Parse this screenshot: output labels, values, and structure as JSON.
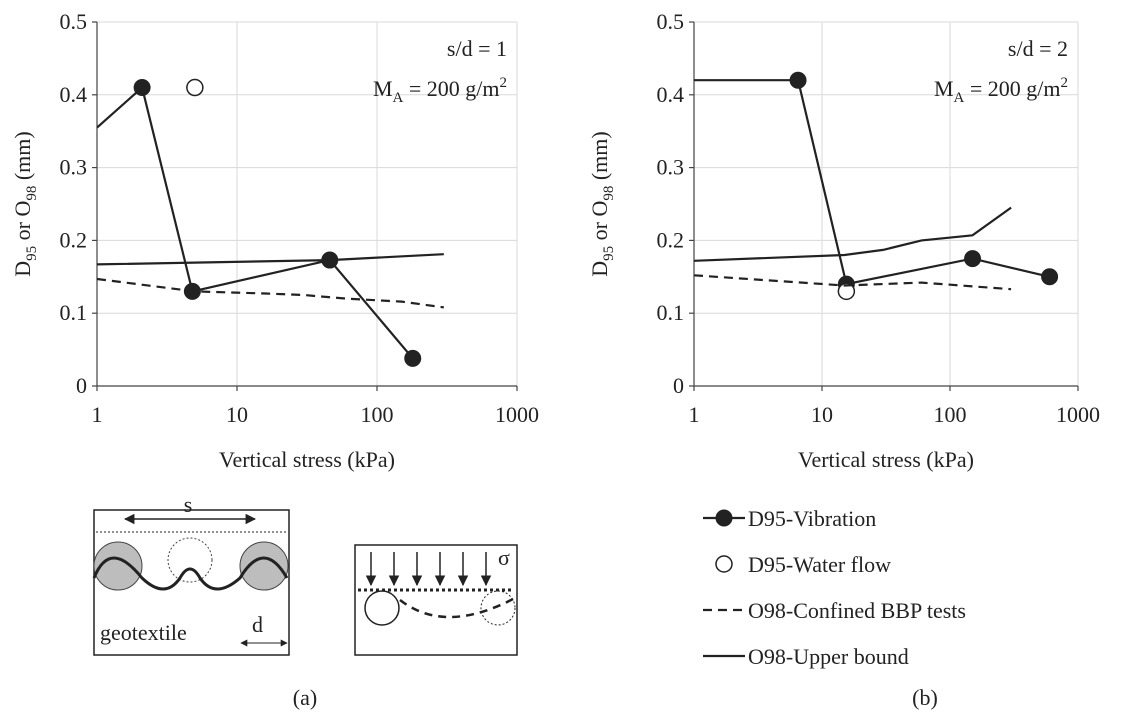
{
  "chart_data": [
    {
      "type": "line",
      "caption": "(a)",
      "x_label": "Vertical stress (kPa)",
      "y_label": [
        {
          "text": "D"
        },
        {
          "text": "95",
          "sub": true
        },
        {
          "text": " or O"
        },
        {
          "text": "98",
          "sub": true
        },
        {
          "text": " (mm)"
        }
      ],
      "annotations": [
        [
          {
            "text": "s/d = 1"
          }
        ],
        [
          {
            "text": "M"
          },
          {
            "text": "A",
            "sub": true
          },
          {
            "text": " = 200 g/m"
          },
          {
            "text": "2",
            "sup": true
          }
        ]
      ],
      "xscale": "log",
      "xlim": [
        1,
        1000
      ],
      "xticks": [
        1,
        10,
        100,
        1000
      ],
      "ylim": [
        0,
        0.5
      ],
      "yticks": [
        0,
        0.1,
        0.2,
        0.3,
        0.4,
        0.5
      ],
      "grid": true,
      "legend": false,
      "series": [
        {
          "name": "D95-Vibration",
          "color": "#222222",
          "marker": "filled",
          "line": "solid",
          "x": [
            2.1,
            4.8,
            46,
            180
          ],
          "values": [
            0.41,
            0.13,
            0.173,
            0.038
          ]
        },
        {
          "name": "D95-Water flow",
          "color": "#222222",
          "marker": "open",
          "line": "none",
          "x": [
            5
          ],
          "values": [
            0.41
          ]
        },
        {
          "name": "O98-Confined BBP tests",
          "color": "#222222",
          "marker": "none",
          "line": "dashed",
          "x": [
            1,
            5,
            16,
            30,
            60,
            150,
            300
          ],
          "values": [
            0.147,
            0.13,
            0.127,
            0.125,
            0.12,
            0.116,
            0.108
          ]
        },
        {
          "name": "O98-Upper bound",
          "color": "#222222",
          "marker": "none",
          "line": "solid",
          "x": [
            1,
            2.1,
            null,
            1,
            46,
            300
          ],
          "values": [
            0.355,
            0.41,
            null,
            0.167,
            0.173,
            0.181
          ]
        }
      ]
    },
    {
      "type": "line",
      "caption": "(b)",
      "x_label": "Vertical stress (kPa)",
      "y_label": [
        {
          "text": "D"
        },
        {
          "text": "95",
          "sub": true
        },
        {
          "text": " or O"
        },
        {
          "text": "98",
          "sub": true
        },
        {
          "text": " (mm)"
        }
      ],
      "annotations": [
        [
          {
            "text": "s/d = 2"
          }
        ],
        [
          {
            "text": "M"
          },
          {
            "text": "A",
            "sub": true
          },
          {
            "text": " = 200 g/m"
          },
          {
            "text": "2",
            "sup": true
          }
        ]
      ],
      "xscale": "log",
      "xlim": [
        1,
        1000
      ],
      "xticks": [
        1,
        10,
        100,
        1000
      ],
      "ylim": [
        0,
        0.5
      ],
      "yticks": [
        0,
        0.1,
        0.2,
        0.3,
        0.4,
        0.5
      ],
      "grid": true,
      "legend": "bottom",
      "series": [
        {
          "name": "D95-Vibration",
          "color": "#222222",
          "marker": "filled",
          "line": "solid",
          "x": [
            6.5,
            15.5,
            150,
            600
          ],
          "values": [
            0.42,
            0.14,
            0.175,
            0.15
          ]
        },
        {
          "name": "D95-Water flow",
          "color": "#222222",
          "marker": "open",
          "line": "none",
          "x": [
            15.5
          ],
          "values": [
            0.13
          ]
        },
        {
          "name": "O98-Confined BBP tests",
          "color": "#222222",
          "marker": "none",
          "line": "dashed",
          "x": [
            1,
            15,
            60,
            300
          ],
          "values": [
            0.152,
            0.138,
            0.142,
            0.133
          ]
        },
        {
          "name": "O98-Upper bound",
          "color": "#222222",
          "marker": "none",
          "line": "solid",
          "x": [
            1,
            6.5,
            null,
            1,
            15,
            30,
            60,
            150,
            300
          ],
          "values": [
            0.42,
            0.42,
            null,
            0.172,
            0.18,
            0.187,
            0.2,
            0.207,
            0.245
          ]
        }
      ]
    }
  ],
  "diagram_a": {
    "labels": [
      "s",
      "geotextile",
      "d"
    ]
  },
  "diagram_b": {
    "labels": [
      "σ"
    ]
  }
}
